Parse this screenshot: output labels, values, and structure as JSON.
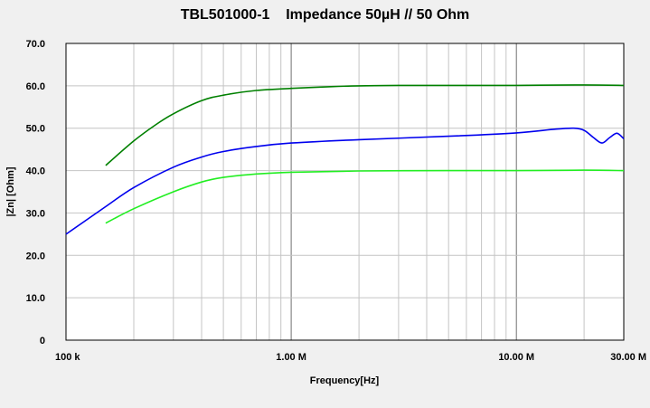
{
  "chart_data": {
    "type": "line",
    "title": "TBL501000-1    Impedance 50µH // 50 Ohm",
    "xlabel": "Frequency[Hz]",
    "ylabel": "|Zn|   [Ohm]",
    "xscale": "log",
    "xlim": [
      100000,
      30000000
    ],
    "ylim": [
      0,
      70
    ],
    "x_tick_labels": [
      {
        "value": 100000,
        "label": "100 k"
      },
      {
        "value": 1000000,
        "label": "1.00 M"
      },
      {
        "value": 10000000,
        "label": "10.00 M"
      },
      {
        "value": 30000000,
        "label": "30.00 M"
      }
    ],
    "y_tick_labels": [
      {
        "value": 0,
        "label": "0"
      },
      {
        "value": 10,
        "label": "10.0"
      },
      {
        "value": 20,
        "label": "20.0"
      },
      {
        "value": 30,
        "label": "30.0"
      },
      {
        "value": 40,
        "label": "40.0"
      },
      {
        "value": 50,
        "label": "50.0"
      },
      {
        "value": 60,
        "label": "60.0"
      },
      {
        "value": 70,
        "label": "70.0"
      }
    ],
    "grid": true,
    "series": [
      {
        "color": "#008000",
        "x": [
          150000,
          200000,
          250000,
          300000,
          400000,
          500000,
          700000,
          1000000,
          1500000,
          2000000,
          3000000,
          5000000,
          10000000,
          20000000,
          30000000
        ],
        "y": [
          41.2,
          47.0,
          50.8,
          53.4,
          56.5,
          57.8,
          58.9,
          59.4,
          59.8,
          60.0,
          60.1,
          60.1,
          60.1,
          60.2,
          60.1
        ]
      },
      {
        "color": "#0000ee",
        "x": [
          100000,
          150000,
          200000,
          300000,
          400000,
          500000,
          700000,
          1000000,
          2000000,
          5000000,
          10000000,
          15000000,
          18000000,
          20000000,
          22000000,
          24000000,
          26000000,
          28000000,
          30000000
        ],
        "y": [
          25.0,
          31.5,
          36.0,
          40.8,
          43.2,
          44.5,
          45.7,
          46.5,
          47.3,
          48.1,
          48.9,
          49.8,
          50.0,
          49.5,
          47.8,
          46.5,
          47.8,
          48.8,
          47.5
        ]
      },
      {
        "color": "#22ee22",
        "x": [
          150000,
          200000,
          300000,
          400000,
          500000,
          700000,
          1000000,
          2000000,
          5000000,
          10000000,
          20000000,
          30000000
        ],
        "y": [
          27.6,
          31.0,
          35.0,
          37.3,
          38.4,
          39.2,
          39.6,
          39.9,
          40.0,
          40.0,
          40.1,
          40.0
        ]
      }
    ]
  }
}
